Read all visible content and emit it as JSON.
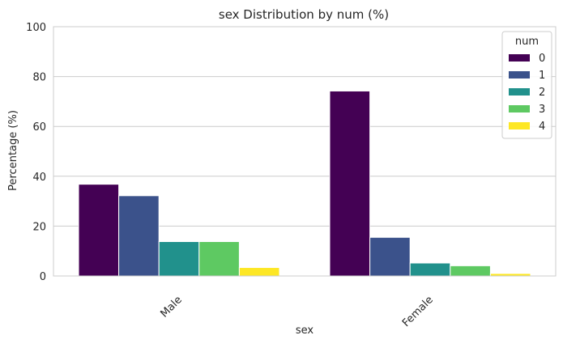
{
  "chart_data": {
    "type": "bar",
    "title": "sex Distribution by num (%)",
    "xlabel": "sex",
    "ylabel": "Percentage (%)",
    "categories": [
      "Male",
      "Female"
    ],
    "ylim": [
      0,
      100
    ],
    "yticks": [
      0,
      20,
      40,
      60,
      80,
      100
    ],
    "grid": true,
    "legend": {
      "title": "num",
      "placement": "top-right"
    },
    "series": [
      {
        "name": "0",
        "color": "#440154",
        "values": [
          36.8,
          74.2
        ]
      },
      {
        "name": "1",
        "color": "#3b528b",
        "values": [
          32.2,
          15.5
        ]
      },
      {
        "name": "2",
        "color": "#21918c",
        "values": [
          13.8,
          5.2
        ]
      },
      {
        "name": "3",
        "color": "#5ec962",
        "values": [
          13.8,
          4.1
        ]
      },
      {
        "name": "4",
        "color": "#fde725",
        "values": [
          3.4,
          1.0
        ]
      }
    ]
  }
}
